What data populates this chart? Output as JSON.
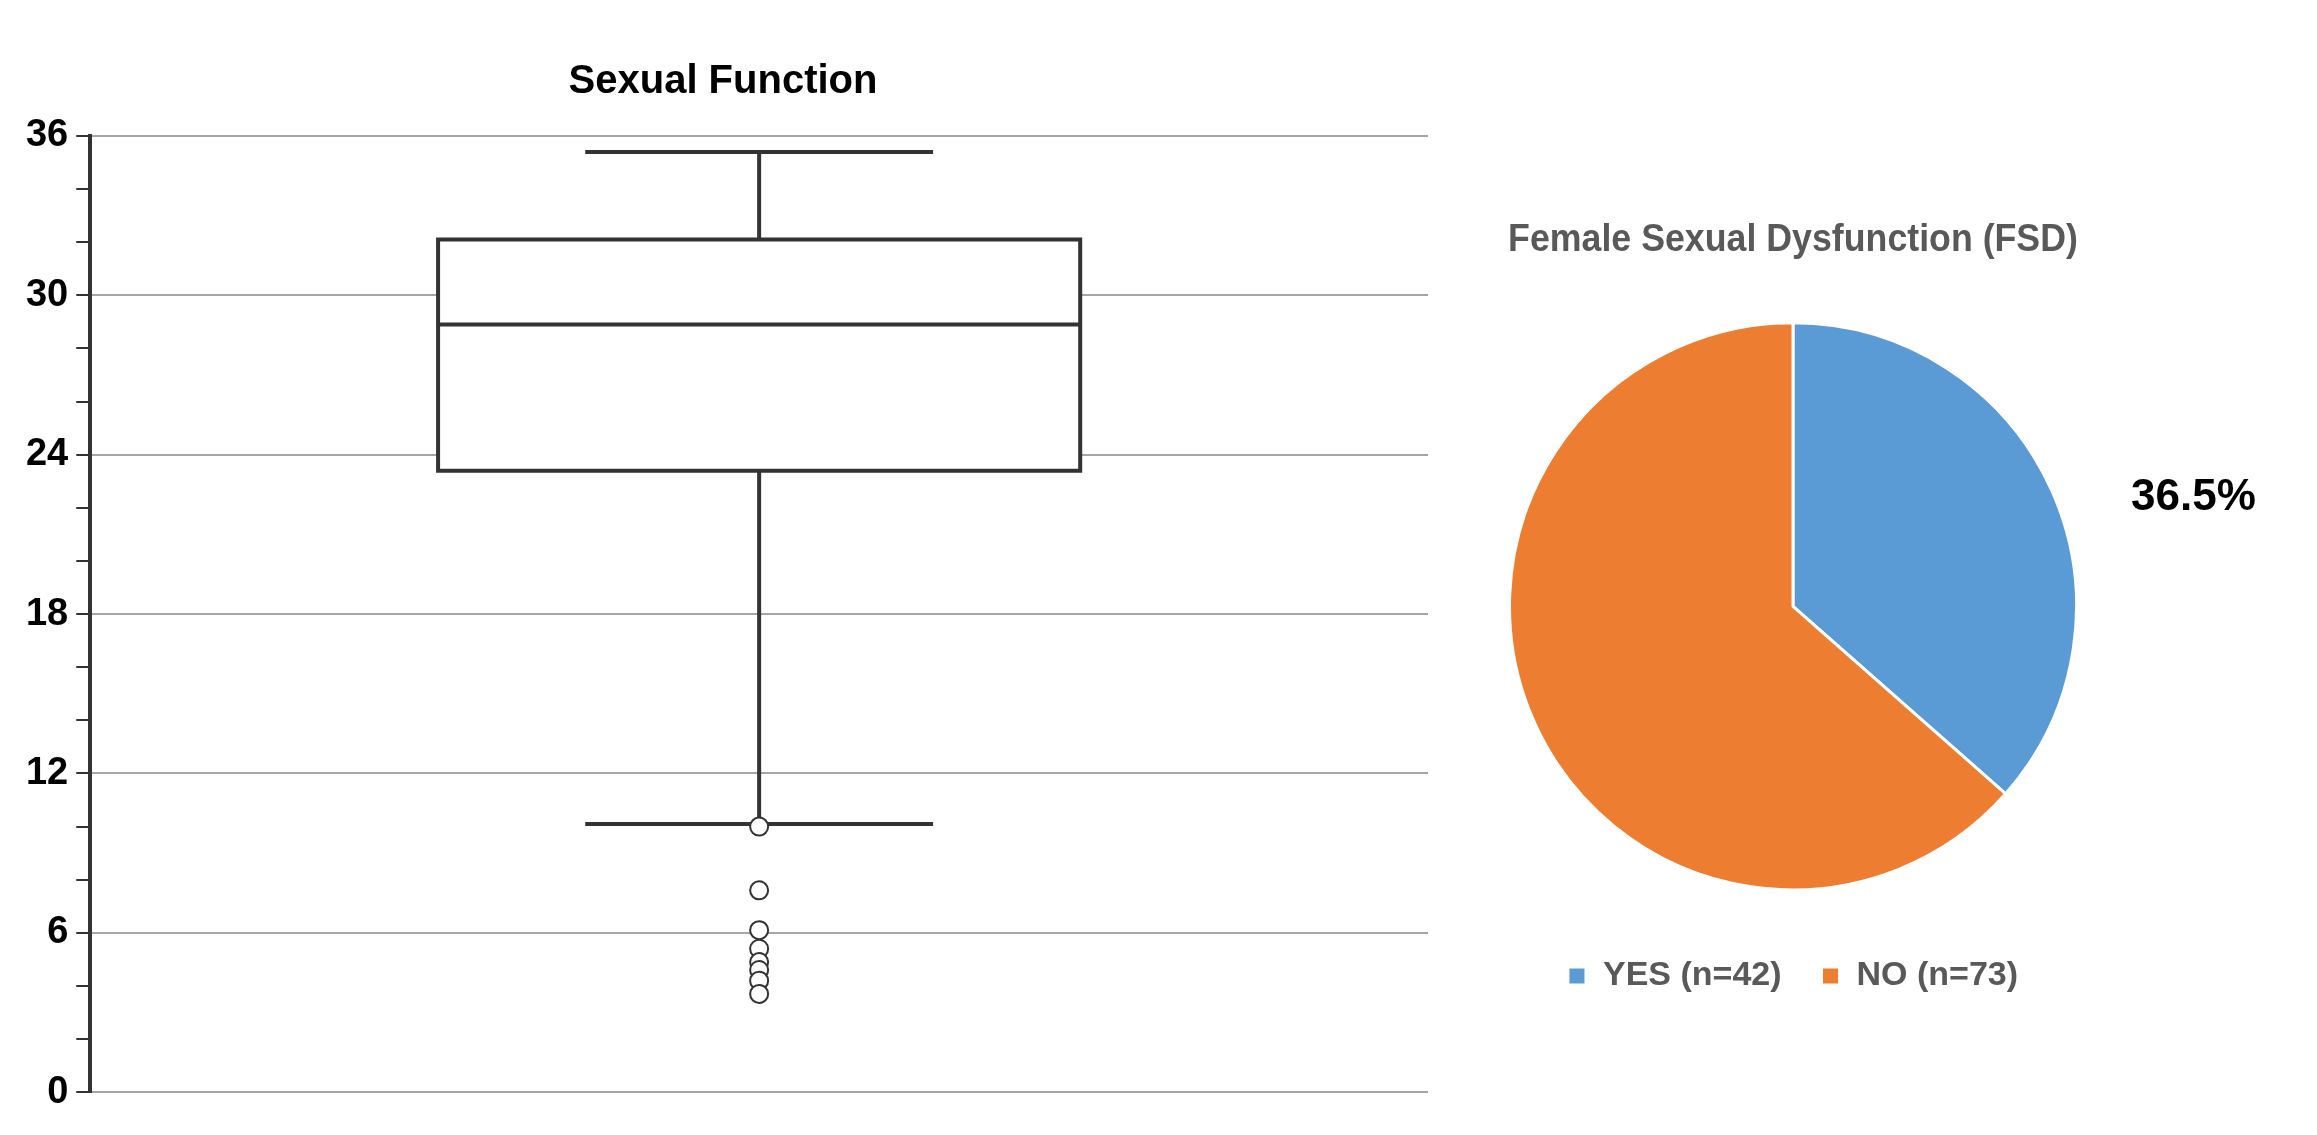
{
  "chart_data": [
    {
      "type": "box",
      "title": "Sexual Function",
      "categories": [
        null
      ],
      "color": "#333333",
      "boxes": [
        {
          "low": 10.1,
          "q1": 23.4,
          "median": 28.9,
          "q3": 32.1,
          "high": 35.4,
          "outliers": [
            10.0,
            7.6,
            6.1,
            5.4,
            4.9,
            4.6,
            4.2,
            3.7
          ]
        }
      ],
      "ylim": [
        0,
        36
      ],
      "yticks": [
        0,
        {
          "value": 2,
          "label": null
        },
        {
          "value": 4,
          "label": null
        },
        6,
        {
          "value": 8,
          "label": null
        },
        {
          "value": 10,
          "label": null
        },
        12,
        {
          "value": 14,
          "label": null
        },
        {
          "value": 16,
          "label": null
        },
        18,
        {
          "value": 20,
          "label": null
        },
        {
          "value": 22,
          "label": null
        },
        24,
        {
          "value": 26,
          "label": null
        },
        {
          "value": 28,
          "label": null
        },
        30,
        {
          "value": 32,
          "label": null
        },
        {
          "value": 34,
          "label": null
        },
        36
      ],
      "grid": "y"
    },
    {
      "type": "pie",
      "title": "Female Sexual Dysfunction (FSD)",
      "categories": [
        "YES (n=42)",
        "NO (n=73)"
      ],
      "values": [
        36.5,
        63.5
      ],
      "colors": [
        "#5b9bd5",
        "#ed7d31"
      ],
      "value_labels": [
        "36.5%",
        null
      ],
      "legend": "bottom"
    }
  ]
}
